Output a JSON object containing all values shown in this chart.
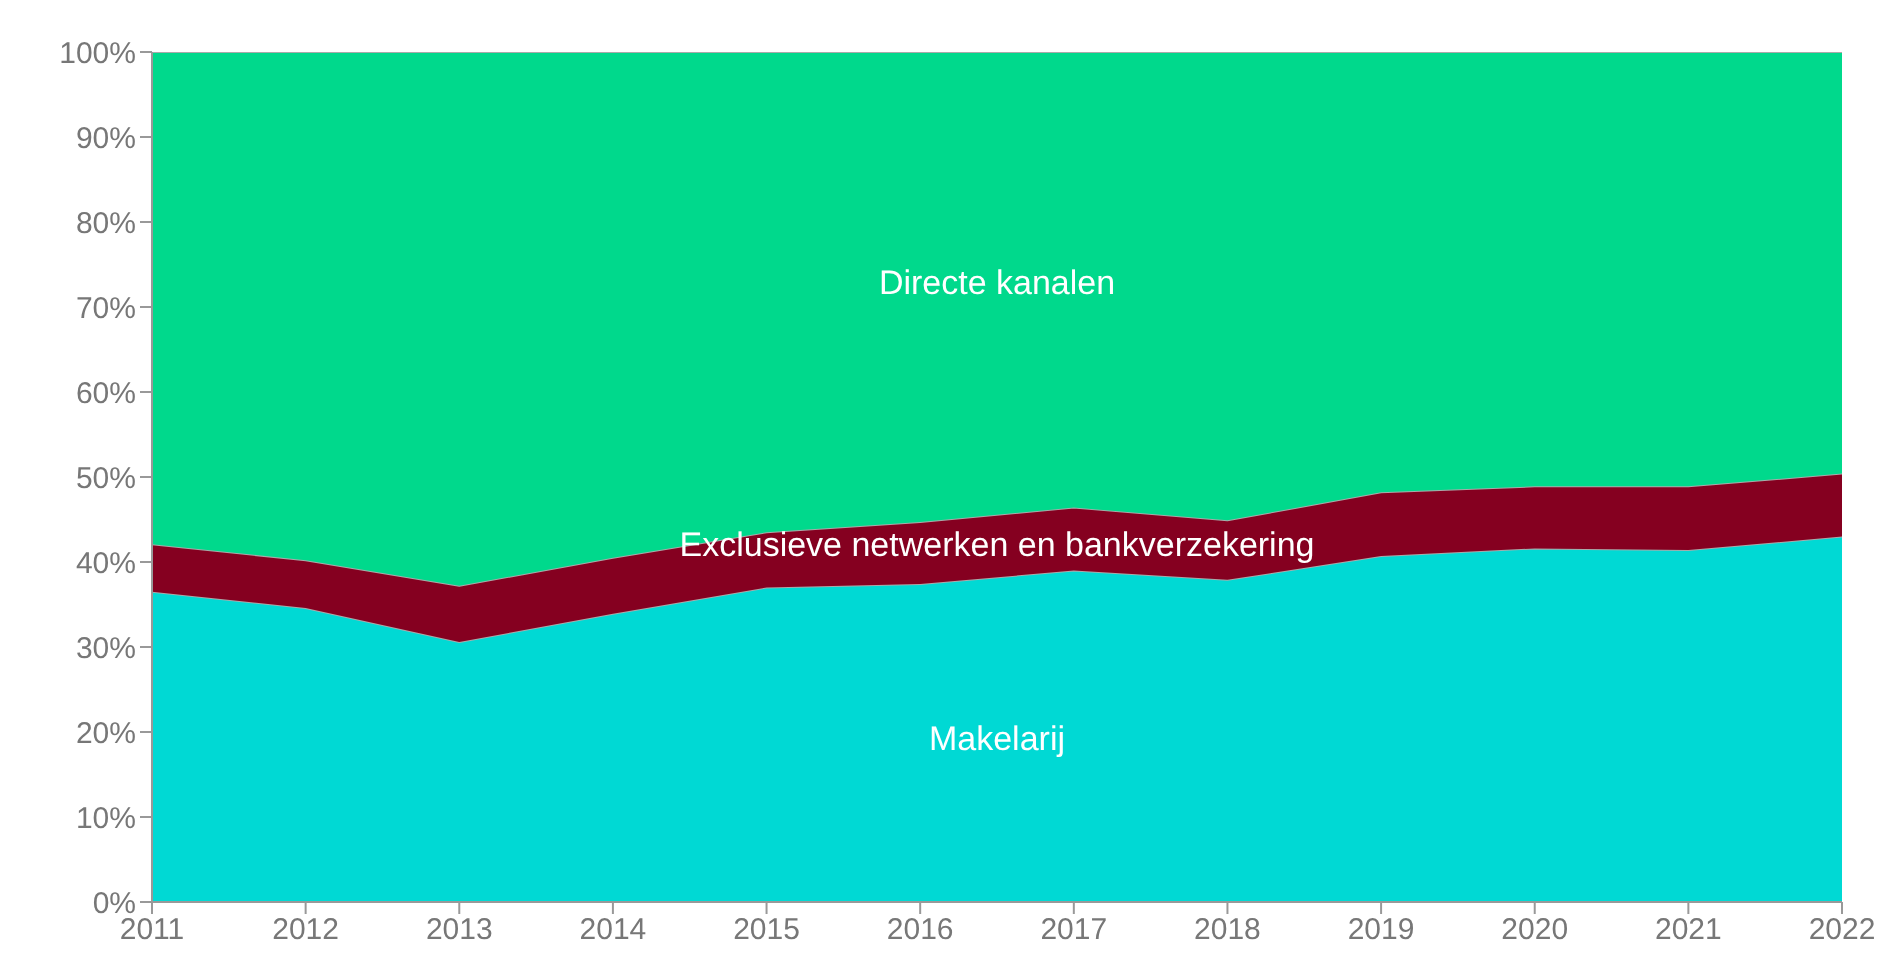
{
  "chart_data": {
    "type": "area",
    "stacked": true,
    "x": [
      2011,
      2012,
      2013,
      2014,
      2015,
      2016,
      2017,
      2018,
      2019,
      2020,
      2021,
      2022
    ],
    "series": [
      {
        "name": "Makelarij",
        "color": "#00d9d4",
        "values": [
          36.5,
          34.6,
          30.6,
          33.9,
          37.0,
          37.4,
          39.0,
          37.9,
          40.7,
          41.6,
          41.4,
          43.0
        ]
      },
      {
        "name": "Exclusieve netwerken en bankverzekering",
        "color": "#850020",
        "values": [
          5.6,
          5.6,
          6.6,
          6.6,
          6.5,
          7.3,
          7.4,
          7.0,
          7.5,
          7.3,
          7.5,
          7.4
        ]
      },
      {
        "name": "Directe kanalen",
        "color": "#00d98c",
        "values": [
          57.9,
          59.8,
          62.8,
          59.5,
          56.5,
          55.3,
          53.6,
          55.1,
          51.8,
          51.1,
          51.1,
          49.6
        ]
      }
    ],
    "xlim": [
      2011,
      2022
    ],
    "xticks": [
      2011,
      2012,
      2013,
      2014,
      2015,
      2016,
      2017,
      2018,
      2019,
      2020,
      2021,
      2022
    ],
    "ylim": [
      0,
      100
    ],
    "yticks": [
      {
        "value": 0,
        "label": "0%"
      },
      {
        "value": 10,
        "label": "10%"
      },
      {
        "value": 20,
        "label": "20%"
      },
      {
        "value": 30,
        "label": "30%"
      },
      {
        "value": 40,
        "label": "40%"
      },
      {
        "value": 50,
        "label": "50%"
      },
      {
        "value": 60,
        "label": "60%"
      },
      {
        "value": 70,
        "label": "70%"
      },
      {
        "value": 80,
        "label": "80%"
      },
      {
        "value": 90,
        "label": "90%"
      },
      {
        "value": 100,
        "label": "100%"
      }
    ],
    "grid": false,
    "legend": false
  }
}
